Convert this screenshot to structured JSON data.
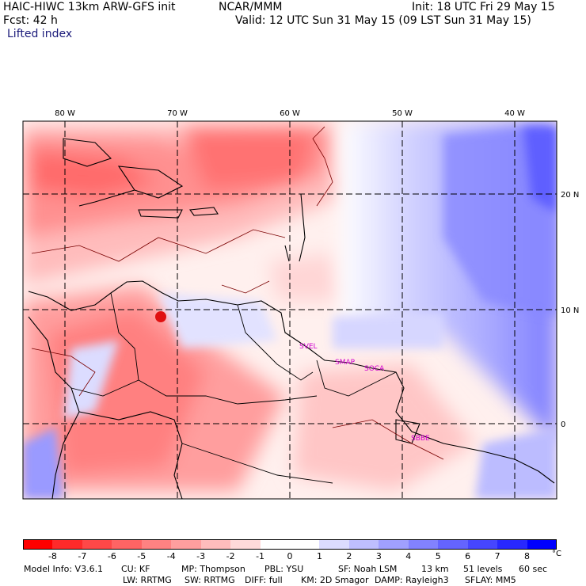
{
  "header": {
    "model": "HAIC-HIWC 13km ARW-GFS init",
    "org": "NCAR/MMM",
    "init": "Init: 18 UTC Fri 29 May 15",
    "fcst": "Fcst:   42 h",
    "valid": "Valid: 12 UTC Sun 31 May 15 (09 LST Sun 31 May 15)",
    "field": "Lifted index"
  },
  "axes": {
    "lon_labels": [
      "80 W",
      "70 W",
      "60 W",
      "50 W",
      "40 W"
    ],
    "lat_labels": [
      "20 N",
      "10 N",
      "0"
    ]
  },
  "stations": [
    "SVEL",
    "SMAP",
    "SOCA",
    "SBBE"
  ],
  "colorbar": {
    "unit": "°C",
    "ticks": [
      "-8",
      "-7",
      "-6",
      "-5",
      "-4",
      "-3",
      "-2",
      "-1",
      "0",
      "1",
      "2",
      "3",
      "4",
      "5",
      "6",
      "7",
      "8"
    ],
    "colors": [
      "#ff0000",
      "#ff2a2a",
      "#ff4848",
      "#ff6464",
      "#ff8282",
      "#ff9e9e",
      "#ffbcbc",
      "#ffdada",
      "#ffffff",
      "#dcdcff",
      "#bebeff",
      "#a0a0ff",
      "#8282ff",
      "#6464ff",
      "#4646ff",
      "#2828ff",
      "#0000ff"
    ]
  },
  "footer": {
    "line1": [
      "Model Info: V3.6.1",
      "CU: KF",
      "MP: Thompson",
      "PBL: YSU",
      "SF: Noah LSM",
      "13 km",
      "51 levels",
      "60 sec"
    ],
    "line2": [
      "LW: RRTMG",
      "SW: RRTMG",
      "DIFF: full",
      "KM: 2D Smagor",
      "DAMP: Rayleigh3",
      "SFLAY: MM5"
    ]
  }
}
